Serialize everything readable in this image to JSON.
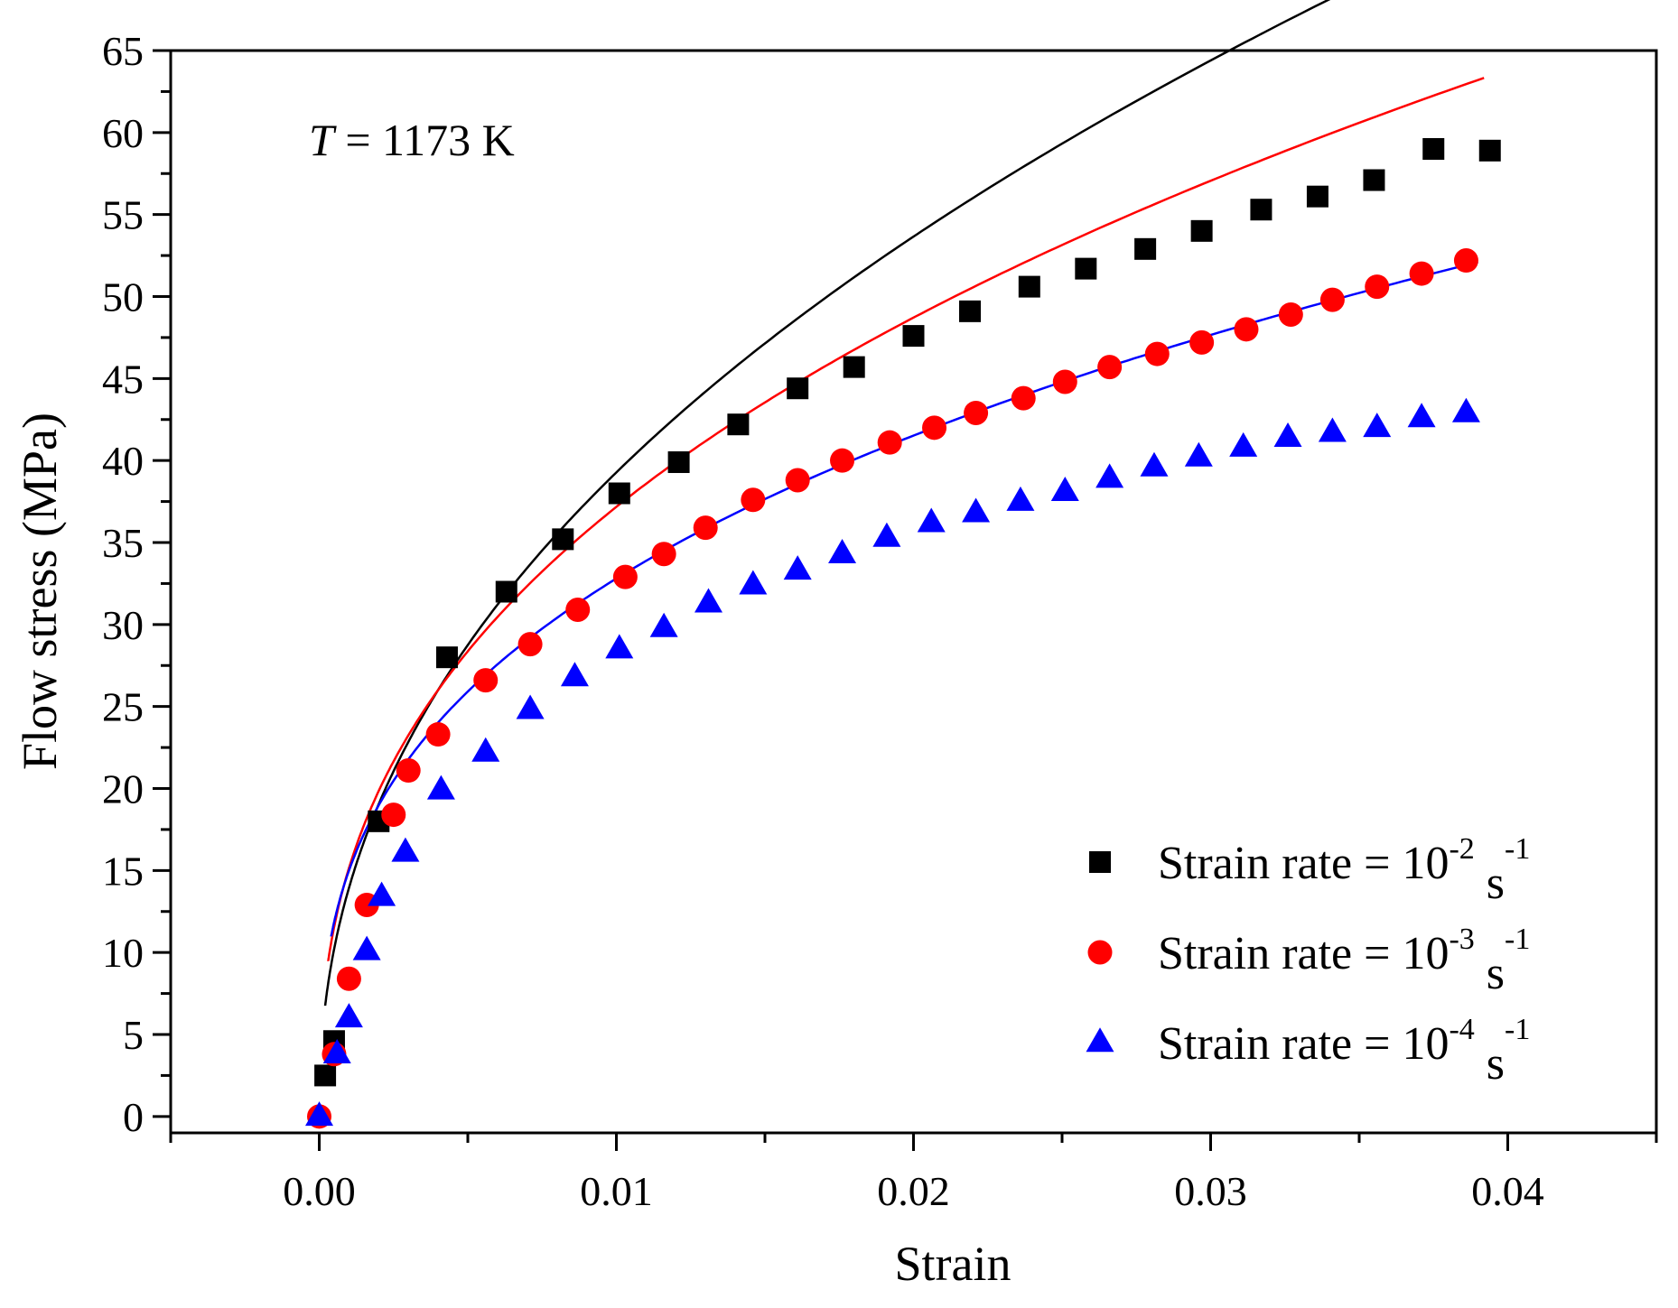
{
  "chart_data": {
    "type": "scatter",
    "xlabel": "Strain",
    "ylabel": "Flow stress (MPa)",
    "xlim": [
      -0.005,
      0.045
    ],
    "ylim": [
      -1,
      65
    ],
    "x_ticks": [
      0.0,
      0.01,
      0.02,
      0.03,
      0.04
    ],
    "x_tick_labels": [
      "0.00",
      "0.01",
      "0.02",
      "0.03",
      "0.04"
    ],
    "y_ticks": [
      0,
      5,
      10,
      15,
      20,
      25,
      30,
      35,
      40,
      45,
      50,
      55,
      60,
      65
    ],
    "y_tick_labels": [
      "0",
      "5",
      "10",
      "15",
      "20",
      "25",
      "30",
      "35",
      "40",
      "45",
      "50",
      "55",
      "60",
      "65"
    ],
    "grid": false,
    "legend_position": "bottom-right",
    "annotation": {
      "italic": "T",
      "text": " = 1173 K"
    },
    "series": [
      {
        "name": "Strain rate = 10-2 s-1",
        "legend": {
          "prefix": "Strain rate = 10",
          "exp1": "-2",
          "unit": " s",
          "exp2": "-1"
        },
        "marker": "square",
        "color": "#000000",
        "x": [
          0.0002,
          0.0005,
          0.002,
          0.0043,
          0.0063,
          0.0082,
          0.0101,
          0.0121,
          0.0141,
          0.0161,
          0.018,
          0.02,
          0.0219,
          0.0239,
          0.0258,
          0.0278,
          0.0297,
          0.0317,
          0.0336,
          0.0355,
          0.0375,
          0.0394
        ],
        "y": [
          2.5,
          4.6,
          18.0,
          28.0,
          32.0,
          35.2,
          38.0,
          39.9,
          42.2,
          44.4,
          45.7,
          47.6,
          49.1,
          50.6,
          51.7,
          52.9,
          54.0,
          55.3,
          56.1,
          57.1,
          59.0,
          58.9
        ]
      },
      {
        "name": "Strain rate = 10-3 s-1",
        "legend": {
          "prefix": "Strain rate = 10",
          "exp1": "-3",
          "unit": " s",
          "exp2": "-1"
        },
        "marker": "circle",
        "color": "#ff0000",
        "x": [
          0.0,
          0.0005,
          0.001,
          0.0016,
          0.0025,
          0.003,
          0.004,
          0.0056,
          0.0071,
          0.0087,
          0.0103,
          0.0116,
          0.013,
          0.0146,
          0.0161,
          0.0176,
          0.0192,
          0.0207,
          0.0221,
          0.0237,
          0.0251,
          0.0266,
          0.0282,
          0.0297,
          0.0312,
          0.0327,
          0.0341,
          0.0356,
          0.0371,
          0.0386
        ],
        "y": [
          0.0,
          3.8,
          8.4,
          12.9,
          18.4,
          21.1,
          23.3,
          26.6,
          28.8,
          30.9,
          32.9,
          34.3,
          35.9,
          37.6,
          38.8,
          40.0,
          41.1,
          42.0,
          42.9,
          43.8,
          44.8,
          45.7,
          46.5,
          47.2,
          48.0,
          48.9,
          49.8,
          50.6,
          51.4,
          52.2
        ]
      },
      {
        "name": "Strain rate = 10-4 s-1",
        "legend": {
          "prefix": "Strain rate = 10",
          "exp1": "-4",
          "unit": " s",
          "exp2": "-1"
        },
        "marker": "triangle",
        "color": "#0000ff",
        "x": [
          0.0,
          0.0006,
          0.001,
          0.0016,
          0.0021,
          0.0029,
          0.0041,
          0.0056,
          0.0071,
          0.0086,
          0.0101,
          0.0116,
          0.0131,
          0.0146,
          0.0161,
          0.0176,
          0.0191,
          0.0206,
          0.0221,
          0.0236,
          0.0251,
          0.0266,
          0.0281,
          0.0296,
          0.0311,
          0.0326,
          0.0341,
          0.0356,
          0.0371,
          0.0386
        ],
        "y": [
          0.0,
          3.8,
          6.0,
          10.1,
          13.4,
          16.1,
          19.9,
          22.2,
          24.8,
          26.8,
          28.5,
          29.8,
          31.3,
          32.4,
          33.3,
          34.3,
          35.3,
          36.2,
          36.8,
          37.5,
          38.1,
          38.9,
          39.6,
          40.2,
          40.8,
          41.4,
          41.7,
          42.0,
          42.6,
          42.9
        ]
      }
    ],
    "fit_curves": [
      {
        "color": "#000000",
        "A": 312,
        "n": 0.45,
        "x_start": 0.0002,
        "x_end": 0.0393
      },
      {
        "color": "#ff0000",
        "A": 224,
        "n": 0.39,
        "x_start": 0.0003,
        "x_end": 0.0392
      },
      {
        "color": "#0000ff",
        "A": 157,
        "n": 0.34,
        "x_start": 0.0004,
        "x_end": 0.039
      }
    ]
  }
}
